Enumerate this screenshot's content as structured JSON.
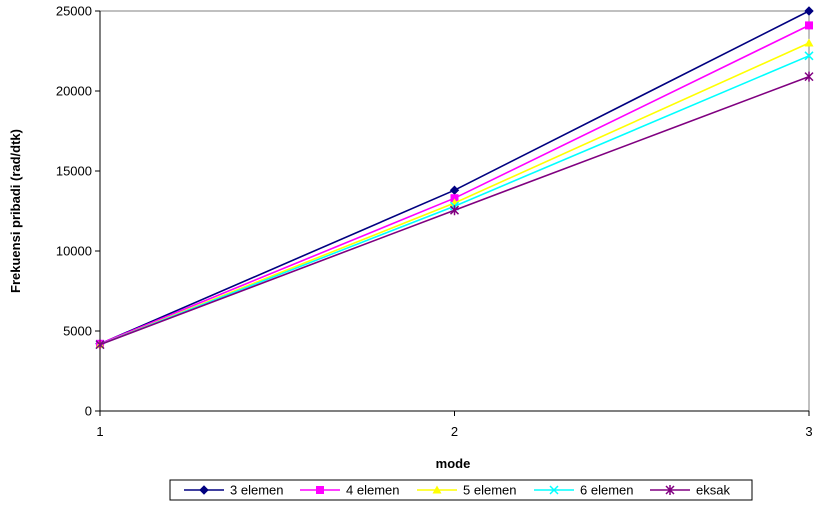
{
  "chart_data": {
    "type": "line",
    "title": "",
    "xlabel": "mode",
    "ylabel": "Frekuensi pribadi (rad/dtk)",
    "x": [
      1,
      2,
      3
    ],
    "x_tick_labels": [
      "1",
      "2",
      "3"
    ],
    "ylim": [
      0,
      25000
    ],
    "y_ticks": [
      0,
      5000,
      10000,
      15000,
      20000,
      25000
    ],
    "y_tick_labels": [
      "0",
      "5000",
      "10000",
      "15000",
      "20000",
      "25000"
    ],
    "grid": false,
    "legend": "bottom",
    "series": [
      {
        "name": "3 elemen",
        "color": "#000080",
        "marker": "diamond",
        "values": [
          4200,
          13800,
          25000
        ]
      },
      {
        "name": "4 elemen",
        "color": "#ff00ff",
        "marker": "square",
        "values": [
          4200,
          13300,
          24100
        ]
      },
      {
        "name": "5 elemen",
        "color": "#ffff00",
        "marker": "triangle",
        "values": [
          4150,
          13000,
          23000
        ]
      },
      {
        "name": "6 elemen",
        "color": "#00ffff",
        "marker": "x",
        "values": [
          4150,
          12800,
          22200
        ]
      },
      {
        "name": "eksak",
        "color": "#800080",
        "marker": "star",
        "values": [
          4150,
          12550,
          20900
        ]
      }
    ]
  }
}
